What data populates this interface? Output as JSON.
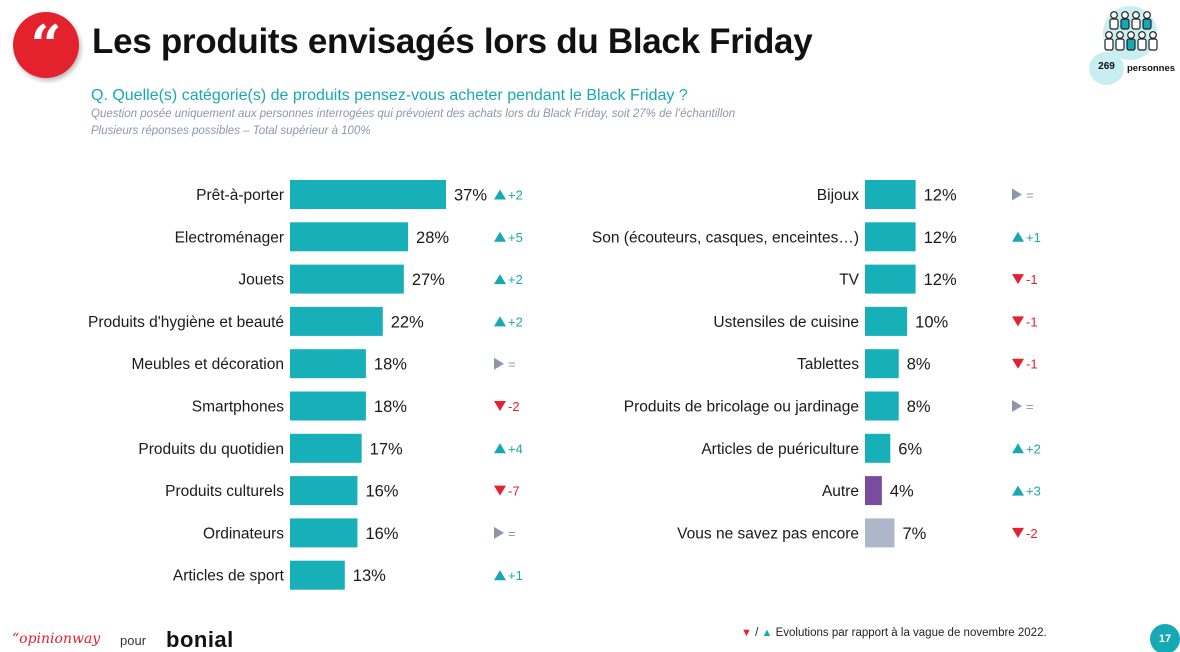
{
  "header": {
    "quote_glyph": "“",
    "title": "Les produits envisagés lors du Black Friday",
    "question": "Q. Quelle(s) catégorie(s) de produits pensez-vous acheter pendant le Black Friday ?",
    "note1": "Question posée uniquement aux personnes interrogées qui prévoient des achats lors du Black Friday, soit 27% de l’échantillon",
    "note2": "Plusieurs réponses possibles – Total supérieur à 100%",
    "sample_count": "269",
    "sample_label": "personnes"
  },
  "chart_data": [
    {
      "type": "bar",
      "orientation": "horizontal",
      "categories": [
        "Prêt-à-porter",
        "Electroménager",
        "Jouets",
        "Produits d'hygiène et beauté",
        "Meubles et décoration",
        "Smartphones",
        "Produits du quotidien",
        "Produits culturels",
        "Ordinateurs",
        "Articles de sport"
      ],
      "values": [
        37,
        28,
        27,
        22,
        18,
        18,
        17,
        16,
        16,
        13
      ],
      "value_labels": [
        "37%",
        "28%",
        "27%",
        "22%",
        "18%",
        "18%",
        "17%",
        "16%",
        "16%",
        "13%"
      ],
      "evolutions": [
        {
          "dir": "up",
          "text": "+2"
        },
        {
          "dir": "up",
          "text": "+5"
        },
        {
          "dir": "up",
          "text": "+2"
        },
        {
          "dir": "up",
          "text": "+2"
        },
        {
          "dir": "eq",
          "text": "="
        },
        {
          "dir": "down",
          "text": "-2"
        },
        {
          "dir": "up",
          "text": "+4"
        },
        {
          "dir": "down",
          "text": "-7"
        },
        {
          "dir": "eq",
          "text": "="
        },
        {
          "dir": "up",
          "text": "+1"
        }
      ],
      "bar_colors": [
        "#17b0b8",
        "#17b0b8",
        "#17b0b8",
        "#17b0b8",
        "#17b0b8",
        "#17b0b8",
        "#17b0b8",
        "#17b0b8",
        "#17b0b8",
        "#17b0b8"
      ],
      "xlim": [
        0,
        37
      ]
    },
    {
      "type": "bar",
      "orientation": "horizontal",
      "categories": [
        "Bijoux",
        "Son (écouteurs, casques, enceintes…)",
        "TV",
        "Ustensiles de cuisine",
        "Tablettes",
        "Produits de bricolage ou jardinage",
        "Articles de puériculture",
        "Autre",
        "Vous ne savez pas encore"
      ],
      "values": [
        12,
        12,
        12,
        10,
        8,
        8,
        6,
        4,
        7
      ],
      "value_labels": [
        "12%",
        "12%",
        "12%",
        "10%",
        "8%",
        "8%",
        "6%",
        "4%",
        "7%"
      ],
      "evolutions": [
        {
          "dir": "eq",
          "text": "="
        },
        {
          "dir": "up",
          "text": "+1"
        },
        {
          "dir": "down",
          "text": "-1"
        },
        {
          "dir": "down",
          "text": "-1"
        },
        {
          "dir": "down",
          "text": "-1"
        },
        {
          "dir": "eq",
          "text": "="
        },
        {
          "dir": "up",
          "text": "+2"
        },
        {
          "dir": "up",
          "text": "+3"
        },
        {
          "dir": "down",
          "text": "-2"
        }
      ],
      "bar_colors": [
        "#17b0b8",
        "#17b0b8",
        "#17b0b8",
        "#17b0b8",
        "#17b0b8",
        "#17b0b8",
        "#17b0b8",
        "#7a4ca0",
        "#aeb7c9"
      ],
      "xlim": [
        0,
        37
      ]
    }
  ],
  "colors": {
    "up": "#17a9b3",
    "down": "#e3222e",
    "eq": "#8c97a8"
  },
  "footer": {
    "logo_text": "“opinionway",
    "pour": "pour",
    "brand": "bonial",
    "legend_sep": "/",
    "legend_text": "Evolutions par rapport à la vague de novembre 2022.",
    "page_number": "17"
  }
}
